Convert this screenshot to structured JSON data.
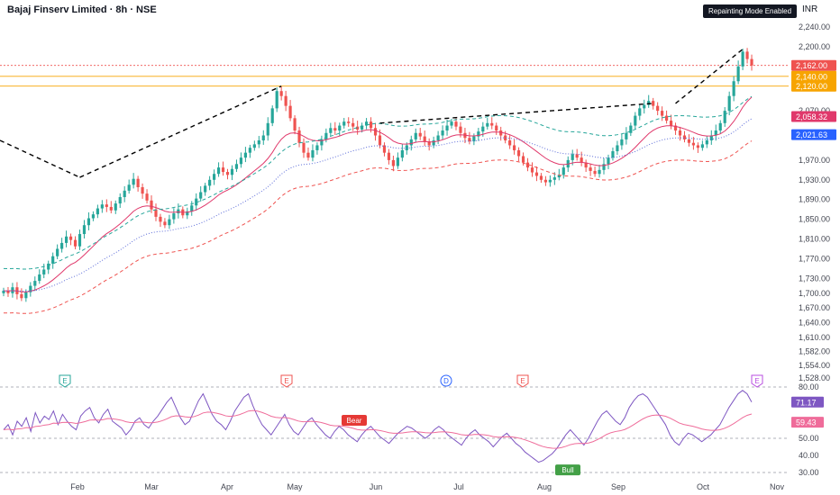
{
  "header": {
    "title": "Bajaj Finserv Limited · 8h · NSE",
    "badge": "Repainting Mode Enabled",
    "currency": "INR"
  },
  "colors": {
    "up": "#26a69a",
    "down": "#ef5350",
    "ema": "#e0386b",
    "kc_upper": "#26a69a",
    "kc_mid": "#5b6bd8",
    "kc_lower": "#ef5350",
    "rsi": "#7e57c2",
    "rsi_ma": "#ef6c9a",
    "trend": "#000000",
    "hline_gold": "#f7a400",
    "hline_red": "#ef5350"
  },
  "chart_data": [
    {
      "type": "candlestick",
      "title": "Bajaj Finserv Limited · 8h · NSE",
      "x_ticks": [
        "Feb",
        "Mar",
        "Apr",
        "May",
        "Jun",
        "Jul",
        "Aug",
        "Sep",
        "Oct",
        "Nov"
      ],
      "y_ticks": [
        "2,240.00",
        "2,200.00",
        "2,070.00",
        "1,970.00",
        "1,930.00",
        "1,890.00",
        "1,850.00",
        "1,810.00",
        "1,770.00",
        "1,730.00",
        "1,700.00",
        "1,670.00",
        "1,640.00",
        "1,610.00",
        "1,582.00",
        "1,554.00",
        "1,528.00"
      ],
      "price_labels": [
        {
          "text": "2,162.00",
          "color": "#ef5350",
          "value": 2162
        },
        {
          "text": "2,140.00",
          "color": "#f7a400",
          "value": 2140
        },
        {
          "text": "2,120.00",
          "color": "#f7a400",
          "value": 2120
        },
        {
          "text": "2,058.32",
          "color": "#e0386b",
          "value": 2058.32
        },
        {
          "text": "2,021.63",
          "color": "#2962ff",
          "value": 2021.63
        }
      ],
      "horizontal_lines": [
        2162,
        2140,
        2120
      ],
      "close_series": [
        1705,
        1700,
        1712,
        1698,
        1690,
        1702,
        1715,
        1725,
        1738,
        1748,
        1760,
        1775,
        1790,
        1802,
        1815,
        1808,
        1795,
        1820,
        1838,
        1852,
        1860,
        1872,
        1880,
        1875,
        1868,
        1882,
        1895,
        1908,
        1920,
        1932,
        1915,
        1902,
        1888,
        1870,
        1855,
        1845,
        1838,
        1850,
        1862,
        1870,
        1858,
        1866,
        1878,
        1892,
        1905,
        1918,
        1930,
        1942,
        1955,
        1946,
        1940,
        1952,
        1962,
        1975,
        1985,
        1995,
        2002,
        2010,
        2020,
        2045,
        2075,
        2110,
        2100,
        2080,
        2055,
        2030,
        2005,
        1985,
        1975,
        1990,
        2000,
        2012,
        2025,
        2035,
        2030,
        2040,
        2048,
        2045,
        2038,
        2032,
        2040,
        2048,
        2035,
        2020,
        2000,
        1985,
        1970,
        1958,
        1975,
        1990,
        2000,
        2012,
        2025,
        2018,
        2008,
        2000,
        2010,
        2020,
        2030,
        2040,
        2048,
        2038,
        2025,
        2015,
        2008,
        2018,
        2028,
        2038,
        2045,
        2040,
        2030,
        2020,
        2010,
        2000,
        1990,
        1978,
        1965,
        1955,
        1945,
        1938,
        1930,
        1925,
        1930,
        1935,
        1940,
        1955,
        1970,
        1982,
        1975,
        1965,
        1955,
        1948,
        1942,
        1950,
        1962,
        1975,
        1988,
        2000,
        2012,
        2025,
        2040,
        2060,
        2075,
        2082,
        2090,
        2080,
        2070,
        2060,
        2050,
        2040,
        2030,
        2020,
        2012,
        2005,
        2000,
        1995,
        2002,
        2010,
        2020,
        2030,
        2045,
        2070,
        2100,
        2130,
        2160,
        2190,
        2175,
        2162
      ],
      "ema_label": "2,058.32",
      "kc_mid_label": "2,021.63",
      "markers_top": [
        "E",
        "E",
        "D",
        "E",
        "E"
      ]
    },
    {
      "type": "line",
      "title": "RSI",
      "y_ticks": [
        "80.00",
        "50.00",
        "40.00",
        "30.00"
      ],
      "series": [
        {
          "color": "#7e57c2",
          "last_label": "71.17"
        },
        {
          "color": "#ef6c9a",
          "last_label": "59.43"
        }
      ],
      "rsi_values": [
        55,
        58,
        52,
        60,
        57,
        62,
        54,
        65,
        59,
        63,
        61,
        66,
        58,
        64,
        60,
        57,
        55,
        63,
        66,
        68,
        62,
        59,
        64,
        67,
        60,
        58,
        56,
        52,
        55,
        60,
        62,
        58,
        56,
        60,
        63,
        67,
        71,
        74,
        68,
        62,
        58,
        60,
        66,
        72,
        76,
        70,
        64,
        60,
        58,
        55,
        60,
        66,
        70,
        74,
        76,
        69,
        63,
        58,
        55,
        52,
        56,
        60,
        64,
        58,
        54,
        52,
        56,
        60,
        62,
        58,
        55,
        52,
        50,
        54,
        57,
        55,
        52,
        50,
        48,
        52,
        55,
        57,
        54,
        51,
        49,
        47,
        50,
        53,
        55,
        57,
        56,
        54,
        52,
        50,
        52,
        55,
        57,
        55,
        52,
        50,
        48,
        46,
        50,
        53,
        55,
        52,
        50,
        48,
        45,
        48,
        51,
        53,
        50,
        47,
        45,
        42,
        40,
        38,
        36,
        37,
        39,
        41,
        44,
        48,
        52,
        55,
        52,
        49,
        46,
        50,
        55,
        60,
        64,
        66,
        63,
        60,
        58,
        62,
        68,
        72,
        75,
        76,
        74,
        70,
        66,
        62,
        58,
        52,
        48,
        46,
        50,
        53,
        52,
        50,
        48,
        50,
        52,
        55,
        58,
        63,
        68,
        72,
        76,
        78,
        76,
        71.17
      ],
      "annotations": [
        {
          "text": "Bear",
          "color": "#e53935"
        },
        {
          "text": "Bull",
          "color": "#43a047"
        }
      ]
    }
  ]
}
